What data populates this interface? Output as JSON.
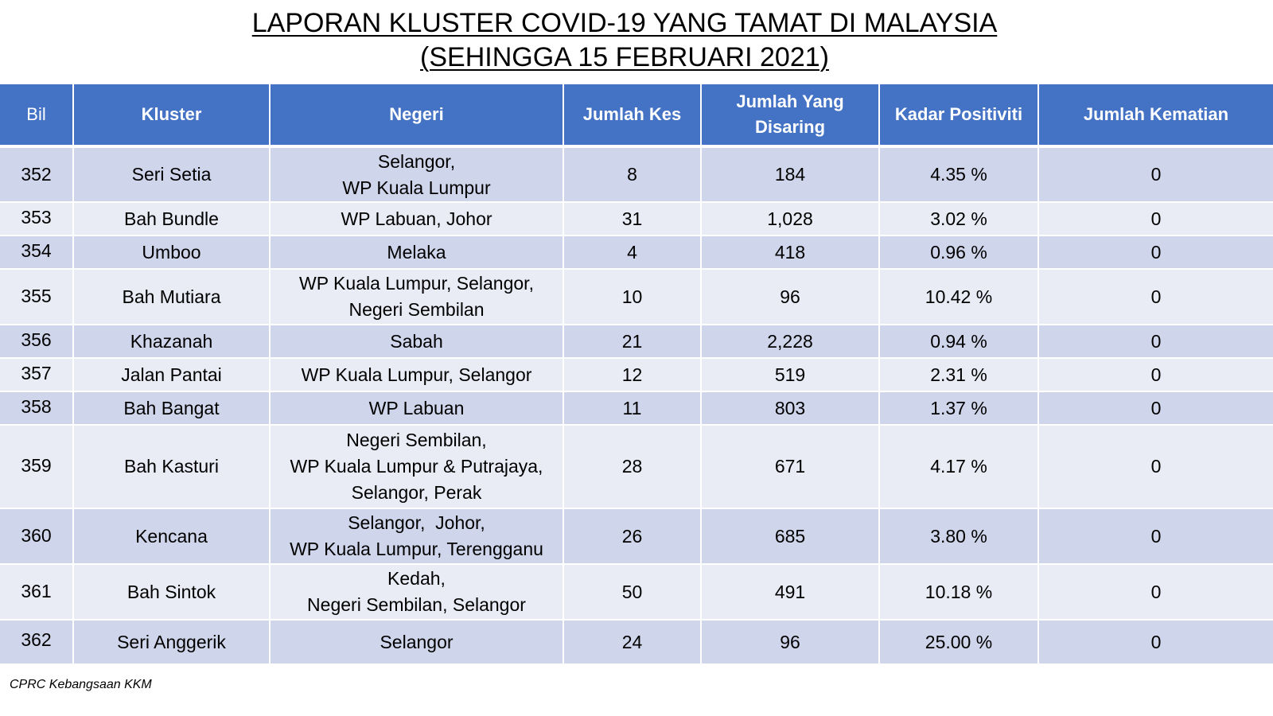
{
  "title": {
    "line1": "LAPORAN KLUSTER COVID-19 YANG TAMAT DI MALAYSIA",
    "line2": "(SEHINGGA 15 FEBRUARI 2021)"
  },
  "table": {
    "headers": {
      "bil": "Bil",
      "kluster": "Kluster",
      "negeri": "Negeri",
      "jumlah_kes": "Jumlah Kes",
      "jumlah_disaring": "Jumlah Yang\nDisaring",
      "kadar_positiviti": "Kadar Positiviti",
      "jumlah_kematian": "Jumlah Kematian"
    },
    "rows": [
      {
        "bil": "352",
        "kluster": "Seri Setia",
        "negeri": "Selangor,\nWP Kuala Lumpur",
        "kes": "8",
        "disaring": "184",
        "kadar": "4.35 %",
        "kematian": "0"
      },
      {
        "bil": "353",
        "kluster": "Bah Bundle",
        "negeri": "WP Labuan, Johor",
        "kes": "31",
        "disaring": "1,028",
        "kadar": "3.02 %",
        "kematian": "0"
      },
      {
        "bil": "354",
        "kluster": "Umboo",
        "negeri": "Melaka",
        "kes": "4",
        "disaring": "418",
        "kadar": "0.96 %",
        "kematian": "0"
      },
      {
        "bil": "355",
        "kluster": "Bah Mutiara",
        "negeri": "WP Kuala Lumpur, Selangor,\nNegeri Sembilan",
        "kes": "10",
        "disaring": "96",
        "kadar": "10.42 %",
        "kematian": "0"
      },
      {
        "bil": "356",
        "kluster": "Khazanah",
        "negeri": "Sabah",
        "kes": "21",
        "disaring": "2,228",
        "kadar": "0.94 %",
        "kematian": "0"
      },
      {
        "bil": "357",
        "kluster": "Jalan Pantai",
        "negeri": "WP Kuala Lumpur, Selangor",
        "kes": "12",
        "disaring": "519",
        "kadar": "2.31 %",
        "kematian": "0"
      },
      {
        "bil": "358",
        "kluster": "Bah Bangat",
        "negeri": "WP Labuan",
        "kes": "11",
        "disaring": "803",
        "kadar": "1.37 %",
        "kematian": "0"
      },
      {
        "bil": "359",
        "kluster": "Bah Kasturi",
        "negeri": "Negeri Sembilan,\nWP Kuala Lumpur & Putrajaya,\nSelangor, Perak",
        "kes": "28",
        "disaring": "671",
        "kadar": "4.17 %",
        "kematian": "0"
      },
      {
        "bil": "360",
        "kluster": "Kencana",
        "negeri": "Selangor,  Johor,\nWP Kuala Lumpur, Terengganu",
        "kes": "26",
        "disaring": "685",
        "kadar": "3.80 %",
        "kematian": "0"
      },
      {
        "bil": "361",
        "kluster": "Bah Sintok",
        "negeri": "Kedah,\nNegeri Sembilan, Selangor",
        "kes": "50",
        "disaring": "491",
        "kadar": "10.18 %",
        "kematian": "0"
      },
      {
        "bil": "362",
        "kluster": "Seri Anggerik",
        "negeri": "Selangor",
        "kes": "24",
        "disaring": "96",
        "kadar": "25.00 %",
        "kematian": "0"
      }
    ]
  },
  "footer": {
    "source": "CPRC Kebangsaan KKM"
  }
}
